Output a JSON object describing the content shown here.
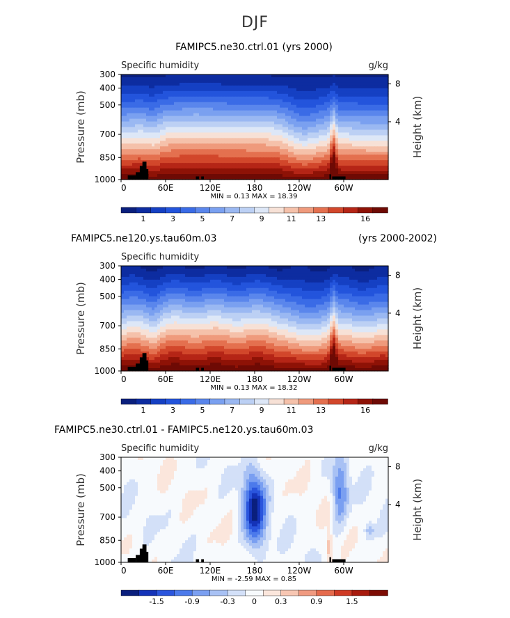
{
  "page_title": "DJF",
  "colors": {
    "seq": [
      "#0a1f7d",
      "#0d2ca0",
      "#1540c3",
      "#2354dc",
      "#3a6be6",
      "#5a86ec",
      "#7aa0f0",
      "#9ab8f2",
      "#bcd0f4",
      "#dde7f7",
      "#f7e1d6",
      "#f5c1aa",
      "#ef9a7c",
      "#e4704f",
      "#d2472b",
      "#b52516",
      "#8e1206",
      "#6e0a04"
    ],
    "div": [
      "#0a1f7d",
      "#1433b8",
      "#2a55dd",
      "#4c7aeb",
      "#7a9ff1",
      "#a8c1f4",
      "#d3e0f8",
      "#f7fafd",
      "#fbe6dc",
      "#f7c6b2",
      "#f09a80",
      "#e56a4c",
      "#cf3a24",
      "#a81b0e",
      "#7d0c04"
    ]
  },
  "chart_data": [
    {
      "type": "heatmap",
      "title": "FAMIPC5.ne30.ctrl.01 (yrs 2000)",
      "title_left": "",
      "title_right": "",
      "left_label": "Specific humidity",
      "right_label": "g/kg",
      "ylabel": "Pressure (mb)",
      "ylabel_right": "Height (km)",
      "yticks": [
        "300",
        "400",
        "500",
        "700",
        "850",
        "1000"
      ],
      "yticks_right": [
        "8",
        "4"
      ],
      "xticks": [
        "0",
        "60E",
        "120E",
        "180",
        "120W",
        "60W"
      ],
      "min_max": "MIN =    0.13   MAX =   18.39",
      "min": 0.13,
      "max": 18.39,
      "colorbar_labels": [
        "1",
        "3",
        "5",
        "7",
        "9",
        "11",
        "13",
        "16"
      ],
      "field": "sequential"
    },
    {
      "type": "heatmap",
      "title": "",
      "title_left": "FAMIPC5.ne120.ys.tau60m.03",
      "title_right": "(yrs 2000-2002)",
      "left_label": "Specific humidity",
      "right_label": "",
      "ylabel": "Pressure (mb)",
      "ylabel_right": "Height (km)",
      "yticks": [
        "300",
        "400",
        "500",
        "700",
        "850",
        "1000"
      ],
      "yticks_right": [
        "8",
        "4"
      ],
      "xticks": [
        "0",
        "60E",
        "120E",
        "180",
        "120W",
        "60W"
      ],
      "min_max": "MIN =    0.13   MAX =   18.32",
      "min": 0.13,
      "max": 18.32,
      "colorbar_labels": [
        "1",
        "3",
        "5",
        "7",
        "9",
        "11",
        "13",
        "16"
      ],
      "field": "sequential"
    },
    {
      "type": "heatmap",
      "title": "",
      "title_left": "FAMIPC5.ne30.ctrl.01 - FAMIPC5.ne120.ys.tau60m.03",
      "title_right": "",
      "left_label": "Specific humidity",
      "right_label": "g/kg",
      "ylabel": "Pressure (mb)",
      "ylabel_right": "Height (km)",
      "yticks": [
        "300",
        "400",
        "500",
        "700",
        "850",
        "1000"
      ],
      "yticks_right": [
        "8",
        "4"
      ],
      "xticks": [
        "0",
        "60E",
        "120E",
        "180",
        "120W",
        "60W"
      ],
      "min_max": "MIN =  -2.59   MAX =    0.85",
      "min": -2.59,
      "max": 0.85,
      "colorbar_labels": [
        "-1.5",
        "-0.9",
        "-0.3",
        "0",
        "0.3",
        "0.9",
        "1.5"
      ],
      "field": "diverging"
    }
  ]
}
